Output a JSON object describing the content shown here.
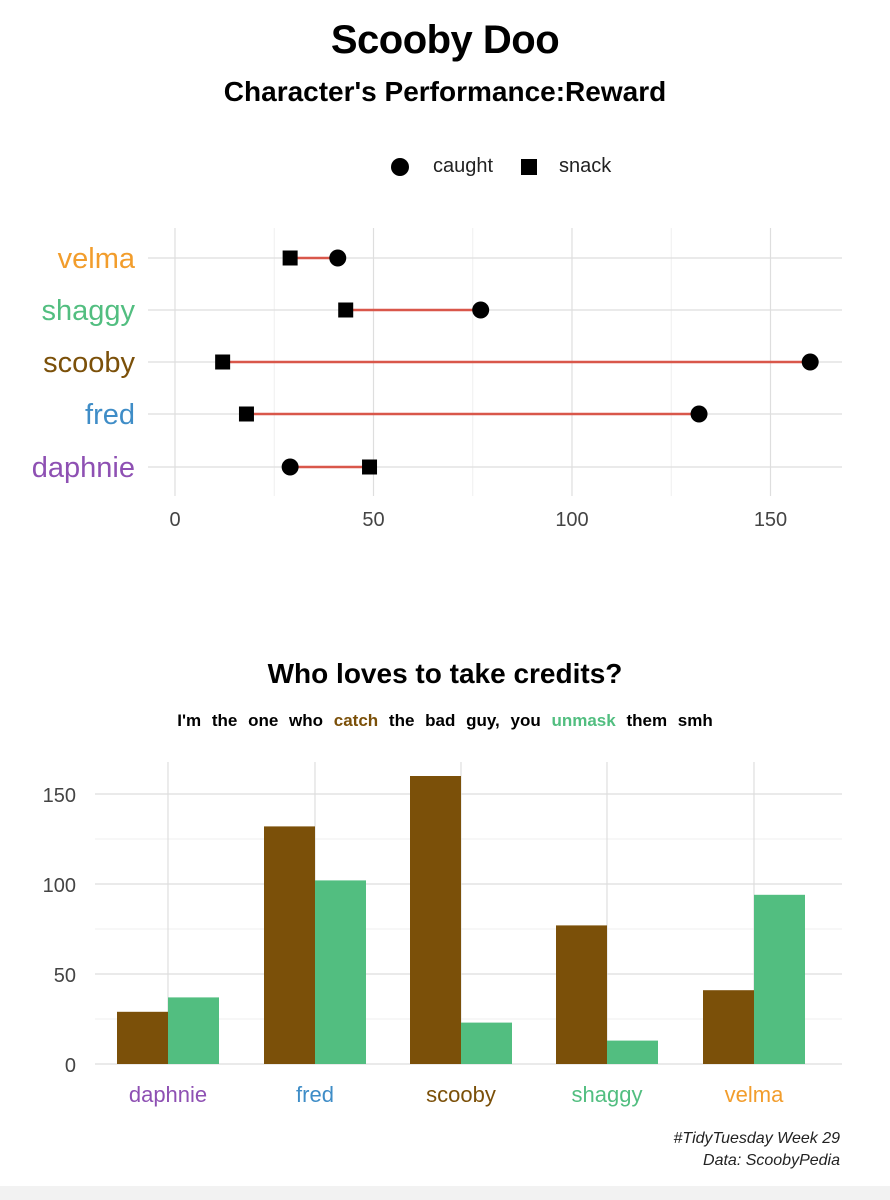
{
  "title": "Scooby Doo",
  "subtitle": "Character's Performance:Reward",
  "legend": {
    "caught": "caught",
    "snack": "snack"
  },
  "colors": {
    "velma": "#f29d2c",
    "shaggy": "#52be80",
    "scooby": "#7b5009",
    "fred": "#3f8dc7",
    "daphnie": "#8e50b3",
    "segment": "#d9574a",
    "caught_bar": "#7b5009",
    "unmask_bar": "#52be80"
  },
  "chart_data": [
    {
      "type": "dumbbell",
      "categories": [
        "velma",
        "shaggy",
        "scooby",
        "fred",
        "daphnie"
      ],
      "series": [
        {
          "name": "caught",
          "values": [
            41,
            77,
            160,
            132,
            29
          ]
        },
        {
          "name": "snack",
          "values": [
            29,
            43,
            12,
            18,
            49
          ]
        }
      ],
      "xlim": [
        0,
        160
      ],
      "xticks": [
        "0",
        "50",
        "100",
        "150"
      ],
      "xtick_values": [
        0,
        50,
        100,
        150
      ],
      "legend_position": "top",
      "grid": true
    },
    {
      "type": "bar",
      "title": "Who loves to take credits?",
      "subtitle": {
        "before_catch": "I'm the one who",
        "catch": "catch",
        "middle": "the bad guy, you",
        "unmask": "unmask",
        "after": "them smh"
      },
      "categories": [
        "daphnie",
        "fred",
        "scooby",
        "shaggy",
        "velma"
      ],
      "series": [
        {
          "values": [
            29,
            132,
            160,
            77,
            41
          ]
        },
        {
          "values": [
            37,
            102,
            23,
            13,
            94
          ]
        }
      ],
      "ylim": [
        0,
        167
      ],
      "yticks": [
        "0",
        "50",
        "100",
        "150"
      ],
      "ytick_values": [
        0,
        50,
        100,
        150
      ],
      "grid": true
    }
  ],
  "caption": {
    "line1": "#TidyTuesday Week 29",
    "line2": "Data: ScoobyPedia"
  }
}
